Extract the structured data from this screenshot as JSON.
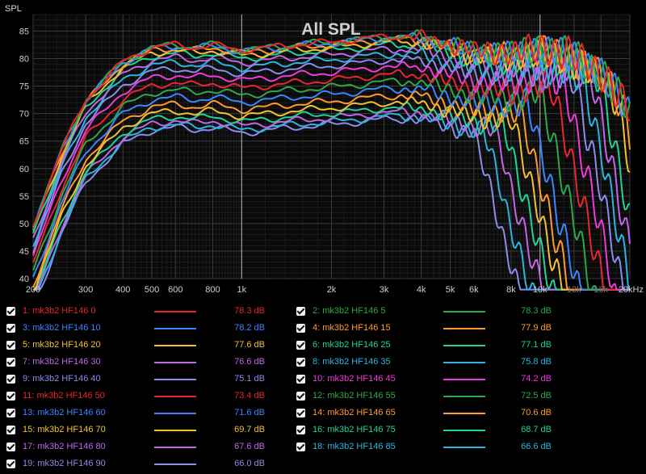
{
  "chart_data": {
    "type": "line",
    "title": "All SPL",
    "ylabel": "SPL",
    "xlabel": "",
    "x_scale": "log",
    "xlim": [
      200,
      20000
    ],
    "ylim": [
      40,
      88
    ],
    "grid": true,
    "y_ticks": [
      40,
      45,
      50,
      55,
      60,
      65,
      70,
      75,
      80,
      85
    ],
    "x_tick_labels": [
      {
        "f": 200,
        "label": "200"
      },
      {
        "f": 300,
        "label": "300"
      },
      {
        "f": 400,
        "label": "400"
      },
      {
        "f": 500,
        "label": "500"
      },
      {
        "f": 600,
        "label": "600"
      },
      {
        "f": 800,
        "label": "800"
      },
      {
        "f": 1000,
        "label": "1k"
      },
      {
        "f": 2000,
        "label": "2k"
      },
      {
        "f": 3000,
        "label": "3k"
      },
      {
        "f": 4000,
        "label": "4k"
      },
      {
        "f": 5000,
        "label": "5k"
      },
      {
        "f": 6000,
        "label": "6k"
      },
      {
        "f": 8000,
        "label": "8k"
      },
      {
        "f": 10000,
        "label": "10k"
      },
      {
        "f": 13000,
        "label": "13k"
      },
      {
        "f": 16000,
        "label": "16k"
      },
      {
        "f": 20000,
        "label": "20kHz"
      }
    ],
    "curve_shape": {
      "freqs": [
        200,
        250,
        300,
        400,
        500,
        600,
        700,
        800,
        1000,
        1500,
        2000,
        2500,
        3000,
        4000,
        5000,
        6000,
        8000,
        10000,
        13000,
        16000,
        20000
      ],
      "offsets": [
        -33,
        -19,
        -10,
        -3,
        -0.5,
        0,
        -0.5,
        0,
        -1,
        0,
        0.5,
        1,
        1.5,
        1.5,
        0,
        -1,
        -1.5,
        -0.5,
        -2,
        -5,
        -12
      ]
    },
    "series": [
      {
        "name": "1: mk3b2 HF146 0",
        "color": "#e8262b",
        "value": "78.3 dB",
        "level": 82.5,
        "falloff_hz": 20000
      },
      {
        "name": "2: mk3b2 HF146 5",
        "color": "#2ea84a",
        "value": "78.3 dB",
        "level": 82.5,
        "falloff_hz": 20000
      },
      {
        "name": "3: mk3b2 HF146 10",
        "color": "#3a86ff",
        "value": "78.2 dB",
        "level": 82.3,
        "falloff_hz": 20000
      },
      {
        "name": "4: mk3b2 HF146 15",
        "color": "#ff9a2e",
        "value": "77.9 dB",
        "level": 82.0,
        "falloff_hz": 19000
      },
      {
        "name": "5: mk3b2 HF146 20",
        "color": "#f2c230",
        "value": "77.6 dB",
        "level": 81.5,
        "falloff_hz": 18000
      },
      {
        "name": "6: mk3b2 HF146 25",
        "color": "#20d39a",
        "value": "77.1 dB",
        "level": 81.0,
        "falloff_hz": 16000
      },
      {
        "name": "7: mk3b2 HF146 30",
        "color": "#c066e8",
        "value": "76.6 dB",
        "level": 80.2,
        "falloff_hz": 15000
      },
      {
        "name": "8: mk3b2 HF146 35",
        "color": "#29b6e0",
        "value": "75.8 dB",
        "level": 79.3,
        "falloff_hz": 14000
      },
      {
        "name": "9: mk3b2 HF146 40",
        "color": "#8a8cf0",
        "value": "75.1 dB",
        "level": 78.2,
        "falloff_hz": 13000
      },
      {
        "name": "10: mk3b2 HF146 45",
        "color": "#f03adb",
        "value": "74.2 dB",
        "level": 77.0,
        "falloff_hz": 12000
      },
      {
        "name": "11: mk3b2 HF146 50",
        "color": "#e8262b",
        "value": "73.4 dB",
        "level": 75.6,
        "falloff_hz": 11000
      },
      {
        "name": "12: mk3b2 HF146 55",
        "color": "#2ea84a",
        "value": "72.5 dB",
        "level": 74.3,
        "falloff_hz": 10000
      },
      {
        "name": "13: mk3b2 HF146 60",
        "color": "#3a86ff",
        "value": "71.6 dB",
        "level": 73.0,
        "falloff_hz": 9000
      },
      {
        "name": "14: mk3b2 HF146 65",
        "color": "#ff9a2e",
        "value": "70.6 dB",
        "level": 71.7,
        "falloff_hz": 8500
      },
      {
        "name": "15: mk3b2 HF146 70",
        "color": "#f2c230",
        "value": "69.7 dB",
        "level": 70.5,
        "falloff_hz": 8000
      },
      {
        "name": "16: mk3b2 HF146 75",
        "color": "#20d39a",
        "value": "68.7 dB",
        "level": 69.5,
        "falloff_hz": 7500
      },
      {
        "name": "17: mk3b2 HF146 80",
        "color": "#c066e8",
        "value": "67.6 dB",
        "level": 68.7,
        "falloff_hz": 7000
      },
      {
        "name": "18: mk3b2 HF146 85",
        "color": "#29b6e0",
        "value": "66.6 dB",
        "level": 68.0,
        "falloff_hz": 6500
      },
      {
        "name": "19: mk3b2 HF146 90",
        "color": "#8a8cf0",
        "value": "66.0 dB",
        "level": 67.5,
        "falloff_hz": 6000
      }
    ]
  }
}
